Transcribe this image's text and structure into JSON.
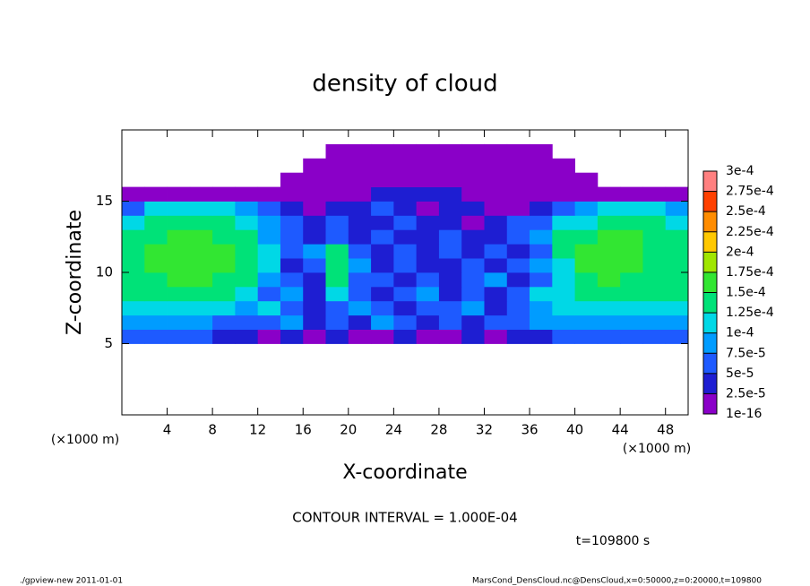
{
  "chart_data": {
    "type": "heatmap",
    "title": "density of cloud",
    "x_label": "X-coordinate",
    "y_label": "Z-coordinate",
    "x_unit": "(×1000 m)",
    "y_unit": "(×1000 m)",
    "contour_note": "CONTOUR INTERVAL = 1.000E-04",
    "time_note": "t=109800 s",
    "footer_left": "./gpview-new  2011-01-01",
    "footer_right": "MarsCond_DensCloud.nc@DensCloud,x=0:50000,z=0:20000,t=109800",
    "xlim": [
      0,
      50
    ],
    "ylim": [
      0,
      20
    ],
    "xticks": [
      4,
      8,
      12,
      16,
      20,
      24,
      28,
      32,
      36,
      40,
      44,
      48
    ],
    "yticks": [
      5,
      10,
      15
    ],
    "x": [
      1,
      3,
      5,
      7,
      9,
      11,
      13,
      15,
      17,
      19,
      21,
      23,
      25,
      27,
      29,
      31,
      33,
      35,
      37,
      39,
      41,
      43,
      45,
      47,
      49
    ],
    "z": [
      5.5,
      6.5,
      7.5,
      8.5,
      9.5,
      10.5,
      11.5,
      12.5,
      13.5,
      14.5,
      15.5,
      16.5,
      17.5,
      18.5
    ],
    "levels": [
      {
        "value": 1e-16,
        "label": "1e-16"
      },
      {
        "value": 2.5e-05,
        "label": "2.5e-5"
      },
      {
        "value": 5e-05,
        "label": "5e-5"
      },
      {
        "value": 7.5e-05,
        "label": "7.5e-5"
      },
      {
        "value": 0.0001,
        "label": "1e-4"
      },
      {
        "value": 0.000125,
        "label": "1.25e-4"
      },
      {
        "value": 0.00015,
        "label": "1.5e-4"
      },
      {
        "value": 0.000175,
        "label": "1.75e-4"
      },
      {
        "value": 0.0002,
        "label": "2e-4"
      },
      {
        "value": 0.000225,
        "label": "2.25e-4"
      },
      {
        "value": 0.00025,
        "label": "2.5e-4"
      },
      {
        "value": 0.000275,
        "label": "2.75e-4"
      },
      {
        "value": 0.0003,
        "label": "3e-4"
      }
    ],
    "colors": [
      "#8a00c8",
      "#1e1ed2",
      "#1e5aff",
      "#009cff",
      "#00d8e6",
      "#00e278",
      "#32e632",
      "#a0e600",
      "#ffc800",
      "#ff8c00",
      "#ff4000",
      "#ff8080"
    ],
    "values": [
      [
        6e-05,
        6e-05,
        6e-05,
        6e-05,
        3.5e-05,
        3.5e-05,
        1e-05,
        3.5e-05,
        1e-05,
        3.5e-05,
        1e-05,
        1e-05,
        3.5e-05,
        1e-05,
        1e-05,
        3.5e-05,
        1e-05,
        3.5e-05,
        3.5e-05,
        6e-05,
        6e-05,
        6e-05,
        6e-05,
        6e-05,
        6e-05
      ],
      [
        8.5e-05,
        8.5e-05,
        8.5e-05,
        8.5e-05,
        6e-05,
        6e-05,
        6e-05,
        8.5e-05,
        3.5e-05,
        6e-05,
        3.5e-05,
        8.5e-05,
        6e-05,
        3.5e-05,
        6e-05,
        3.5e-05,
        6e-05,
        6e-05,
        8.5e-05,
        8.5e-05,
        8.5e-05,
        8.5e-05,
        8.5e-05,
        8.5e-05,
        8.5e-05
      ],
      [
        0.00011,
        0.00011,
        0.00011,
        0.00011,
        0.00011,
        8.5e-05,
        0.00011,
        6e-05,
        3.5e-05,
        6e-05,
        8.5e-05,
        6e-05,
        3.5e-05,
        6e-05,
        6e-05,
        8.5e-05,
        3.5e-05,
        6e-05,
        8.5e-05,
        0.00011,
        0.00011,
        0.00011,
        0.00011,
        0.00011,
        0.00011
      ],
      [
        0.00014,
        0.00014,
        0.00014,
        0.00014,
        0.00014,
        0.00011,
        6e-05,
        8.5e-05,
        3.5e-05,
        0.00011,
        6e-05,
        3.5e-05,
        6e-05,
        8.5e-05,
        3.5e-05,
        6e-05,
        3.5e-05,
        6e-05,
        0.00011,
        0.00011,
        0.00014,
        0.00014,
        0.00014,
        0.00014,
        0.00014
      ],
      [
        0.00014,
        0.00014,
        0.00016,
        0.00016,
        0.00014,
        0.00014,
        8.5e-05,
        6e-05,
        3.5e-05,
        0.00014,
        6e-05,
        6e-05,
        3.5e-05,
        6e-05,
        3.5e-05,
        6e-05,
        8.5e-05,
        3.5e-05,
        6e-05,
        0.00011,
        0.00014,
        0.00016,
        0.00014,
        0.00014,
        0.00014
      ],
      [
        0.00014,
        0.00016,
        0.00016,
        0.00016,
        0.00016,
        0.00014,
        0.00011,
        3.5e-05,
        6e-05,
        0.00014,
        8.5e-05,
        3.5e-05,
        6e-05,
        3.5e-05,
        3.5e-05,
        6e-05,
        3.5e-05,
        6e-05,
        8.5e-05,
        0.00011,
        0.00016,
        0.00016,
        0.00016,
        0.00014,
        0.00014
      ],
      [
        0.00014,
        0.00016,
        0.00016,
        0.00016,
        0.00016,
        0.00014,
        0.00011,
        6e-05,
        8.5e-05,
        0.00014,
        6e-05,
        3.5e-05,
        6e-05,
        3.5e-05,
        6e-05,
        3.5e-05,
        6e-05,
        3.5e-05,
        6e-05,
        0.00014,
        0.00016,
        0.00016,
        0.00016,
        0.00014,
        0.00014
      ],
      [
        0.00014,
        0.00014,
        0.00016,
        0.00016,
        0.00014,
        0.00014,
        8.5e-05,
        6e-05,
        3.5e-05,
        6e-05,
        3.5e-05,
        6e-05,
        3.5e-05,
        3.5e-05,
        6e-05,
        3.5e-05,
        3.5e-05,
        6e-05,
        8.5e-05,
        0.00014,
        0.00014,
        0.00016,
        0.00016,
        0.00014,
        0.00014
      ],
      [
        0.00011,
        0.00014,
        0.00014,
        0.00014,
        0.00014,
        0.00011,
        8.5e-05,
        6e-05,
        3.5e-05,
        6e-05,
        3.5e-05,
        3.5e-05,
        6e-05,
        3.5e-05,
        3.5e-05,
        1e-05,
        3.5e-05,
        6e-05,
        6e-05,
        0.00011,
        0.00011,
        0.00014,
        0.00014,
        0.00014,
        0.00011
      ],
      [
        6e-05,
        0.00011,
        0.00011,
        0.00011,
        0.00011,
        8.5e-05,
        6e-05,
        3.5e-05,
        1e-05,
        3.5e-05,
        3.5e-05,
        6e-05,
        3.5e-05,
        1e-05,
        3.5e-05,
        3.5e-05,
        1e-05,
        1e-05,
        3.5e-05,
        6e-05,
        8.5e-05,
        0.00011,
        0.00011,
        0.00011,
        8.5e-05
      ],
      [
        1e-05,
        1e-05,
        1e-05,
        1e-05,
        1e-05,
        1e-05,
        1e-05,
        1e-05,
        1e-05,
        1e-05,
        1e-05,
        3.5e-05,
        3.5e-05,
        3.5e-05,
        3.5e-05,
        1e-05,
        1e-05,
        1e-05,
        1e-05,
        1e-05,
        1e-05,
        1e-05,
        1e-05,
        1e-05,
        1e-05
      ],
      [
        null,
        null,
        null,
        null,
        null,
        null,
        null,
        1e-05,
        1e-05,
        1e-05,
        1e-05,
        1e-05,
        1e-05,
        1e-05,
        1e-05,
        1e-05,
        1e-05,
        1e-05,
        1e-05,
        1e-05,
        1e-05,
        null,
        null,
        null,
        null
      ],
      [
        null,
        null,
        null,
        null,
        null,
        null,
        null,
        null,
        1e-05,
        1e-05,
        1e-05,
        1e-05,
        1e-05,
        1e-05,
        1e-05,
        1e-05,
        1e-05,
        1e-05,
        1e-05,
        1e-05,
        null,
        null,
        null,
        null,
        null
      ],
      [
        null,
        null,
        null,
        null,
        null,
        null,
        null,
        null,
        null,
        1e-05,
        1e-05,
        1e-05,
        1e-05,
        1e-05,
        1e-05,
        1e-05,
        1e-05,
        1e-05,
        1e-05,
        null,
        null,
        null,
        null,
        null,
        null
      ]
    ]
  }
}
